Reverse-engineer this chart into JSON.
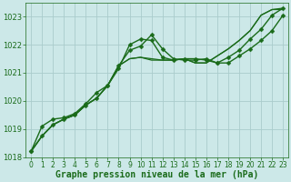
{
  "background_color": "#cce8e8",
  "grid_color": "#aacccc",
  "line_color": "#1a6b1a",
  "xlabel": "Graphe pression niveau de la mer (hPa)",
  "xlabel_fontsize": 7,
  "ylim": [
    1018,
    1023.5
  ],
  "xlim": [
    -0.5,
    23.5
  ],
  "yticks": [
    1018,
    1019,
    1020,
    1021,
    1022,
    1023
  ],
  "xticks": [
    0,
    1,
    2,
    3,
    4,
    5,
    6,
    7,
    8,
    9,
    10,
    11,
    12,
    13,
    14,
    15,
    16,
    17,
    18,
    19,
    20,
    21,
    22,
    23
  ],
  "series": [
    {
      "x": [
        0,
        1,
        2,
        3,
        4,
        5,
        6,
        7,
        8,
        9,
        10,
        11,
        12,
        13,
        14,
        15,
        16,
        17,
        18,
        19,
        20,
        21,
        22,
        23
      ],
      "y": [
        1018.2,
        1018.75,
        1019.15,
        1019.35,
        1019.5,
        1019.85,
        1020.1,
        1020.55,
        1021.25,
        1021.8,
        1021.95,
        1022.35,
        1021.85,
        1021.5,
        1021.45,
        1021.45,
        1021.5,
        1021.35,
        1021.35,
        1021.6,
        1021.85,
        1022.15,
        1022.5,
        1023.05
      ],
      "marker": true,
      "lw": 1.0
    },
    {
      "x": [
        0,
        1,
        2,
        3,
        4,
        5,
        6,
        7,
        8,
        9,
        10,
        11,
        12,
        13,
        14,
        15,
        16,
        17,
        18,
        19,
        20,
        21,
        22,
        23
      ],
      "y": [
        1018.2,
        1018.75,
        1019.15,
        1019.35,
        1019.5,
        1019.85,
        1020.1,
        1020.55,
        1021.25,
        1021.5,
        1021.55,
        1021.45,
        1021.45,
        1021.45,
        1021.5,
        1021.35,
        1021.35,
        1021.6,
        1021.85,
        1022.15,
        1022.5,
        1023.05,
        1023.25,
        1023.25
      ],
      "marker": false,
      "lw": 0.9
    },
    {
      "x": [
        0,
        1,
        2,
        3,
        4,
        5,
        6,
        7,
        8,
        9,
        10,
        11,
        12,
        13,
        14,
        15,
        16,
        17,
        18,
        19,
        20,
        21,
        22,
        23
      ],
      "y": [
        1018.2,
        1018.75,
        1019.15,
        1019.35,
        1019.5,
        1019.85,
        1020.1,
        1020.55,
        1021.25,
        1021.5,
        1021.55,
        1021.5,
        1021.45,
        1021.45,
        1021.5,
        1021.35,
        1021.35,
        1021.6,
        1021.85,
        1022.15,
        1022.5,
        1023.05,
        1023.25,
        1023.3
      ],
      "marker": false,
      "lw": 0.9
    },
    {
      "x": [
        0,
        1,
        2,
        3,
        4,
        5,
        6,
        7,
        8,
        9,
        10,
        11,
        12,
        13,
        14,
        15,
        16,
        17,
        18,
        19,
        20,
        21,
        22,
        23
      ],
      "y": [
        1018.2,
        1019.1,
        1019.35,
        1019.4,
        1019.55,
        1019.9,
        1020.3,
        1020.55,
        1021.15,
        1022.0,
        1022.2,
        1022.15,
        1021.55,
        1021.45,
        1021.5,
        1021.5,
        1021.45,
        1021.35,
        1021.55,
        1021.8,
        1022.2,
        1022.55,
        1023.05,
        1023.3
      ],
      "marker": true,
      "lw": 1.0
    }
  ],
  "marker_size": 2.5
}
